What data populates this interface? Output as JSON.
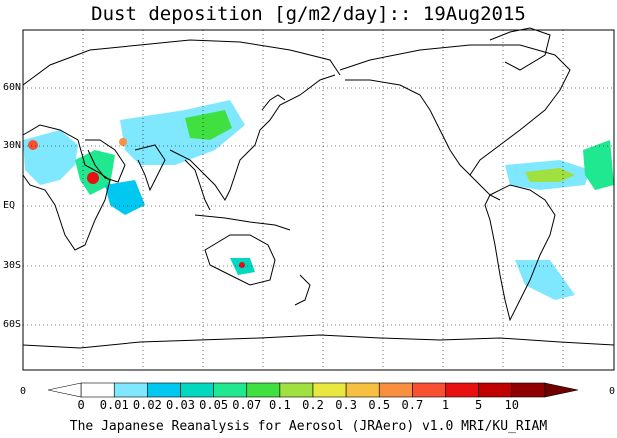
{
  "title": "Dust deposition [g/m2/day]:: 19Aug2015",
  "latitude_labels": [
    "60N",
    "30N",
    "EQ",
    "30S",
    "60S"
  ],
  "longitude_edge_labels": [
    "0",
    "0"
  ],
  "colorbar": {
    "ticks": [
      "0",
      "0.01",
      "0.02",
      "0.03",
      "0.05",
      "0.07",
      "0.1",
      "0.2",
      "0.3",
      "0.5",
      "0.7",
      "1",
      "5",
      "10"
    ],
    "colors": [
      "#ffffff",
      "#ffffff",
      "#7fe8ff",
      "#00c8f0",
      "#00d8c0",
      "#20e890",
      "#40e040",
      "#a0e040",
      "#e8e840",
      "#f8c040",
      "#f89040",
      "#f85030",
      "#e81010",
      "#c00000",
      "#900000",
      "#700000"
    ]
  },
  "credit": "The Japanese Reanalysis for Aerosol (JRAero) v1.0 MRI/KU_RIAM"
}
